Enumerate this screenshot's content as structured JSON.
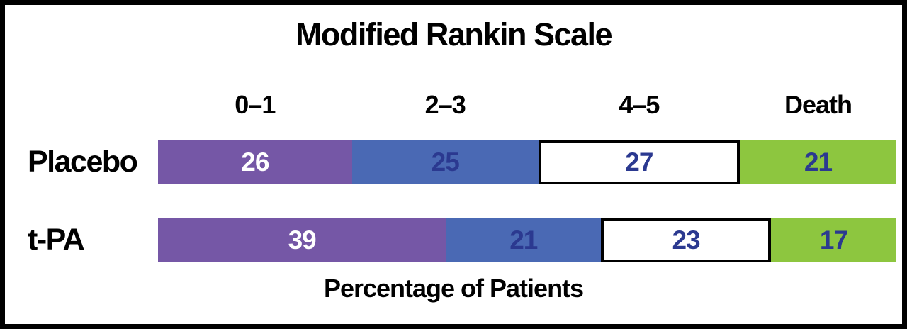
{
  "chart_data": {
    "type": "bar",
    "subtype": "horizontal-stacked",
    "title": "Modified Rankin Scale",
    "xlabel": "Percentage of Patients",
    "categories": [
      "0–1",
      "2–3",
      "4–5",
      "Death"
    ],
    "series": [
      {
        "name": "Placebo",
        "values": [
          26,
          25,
          27,
          21
        ]
      },
      {
        "name": "t-PA",
        "values": [
          39,
          21,
          23,
          17
        ]
      }
    ],
    "segment_colors": [
      "#7557A6",
      "#4A69B4",
      "#FFFFFF",
      "#8DC63F"
    ],
    "segment_text_colors": [
      "#FFFFFF",
      "#2B3990",
      "#2B3990",
      "#2B3990"
    ],
    "outlined_segment_index": 2,
    "frame_border_color": "#000000",
    "background_color": "#FFFFFF",
    "legend_position": "category labels above top bar",
    "x_range_percent": [
      0,
      100
    ],
    "grid": false
  }
}
